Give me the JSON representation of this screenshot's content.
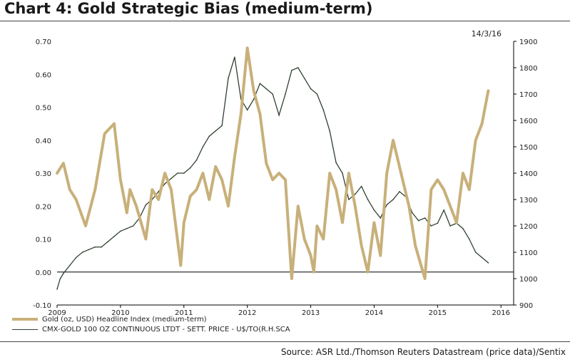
{
  "title": "Chart 4: Gold Strategic Bias (medium-term)",
  "date": "14/3/16",
  "source": "Source: ASR Ltd./Thomson Reuters Datastream (price data)/Sentix",
  "colors": {
    "index": "#c8b07a",
    "price": "#2f4030",
    "axis": "#000000"
  },
  "chart_data": {
    "type": "line",
    "title": "Chart 4: Gold Strategic Bias (medium-term)",
    "x_ticks": [
      "2009",
      "2010",
      "2011",
      "2012",
      "2013",
      "2014",
      "2015",
      "2016"
    ],
    "y_left": {
      "lim": [
        -0.1,
        0.7
      ],
      "ticks": [
        "-0.10",
        "0.00",
        "0.10",
        "0.20",
        "0.30",
        "0.40",
        "0.50",
        "0.60",
        "0.70"
      ]
    },
    "y_right": {
      "lim": [
        900,
        1900
      ],
      "ticks": [
        "900",
        "1000",
        "1100",
        "1200",
        "1300",
        "1400",
        "1500",
        "1600",
        "1700",
        "1800",
        "1900"
      ]
    },
    "grid": false,
    "legend": "bottom-left",
    "series": [
      {
        "name": "Gold (oz, USD) Headline Index (medium-term)",
        "axis": "left",
        "x": [
          2009.0,
          2009.1,
          2009.2,
          2009.3,
          2009.45,
          2009.6,
          2009.75,
          2009.9,
          2010.0,
          2010.1,
          2010.15,
          2010.25,
          2010.4,
          2010.5,
          2010.6,
          2010.7,
          2010.8,
          2010.95,
          2011.0,
          2011.1,
          2011.2,
          2011.3,
          2011.4,
          2011.5,
          2011.6,
          2011.7,
          2011.8,
          2011.9,
          2012.0,
          2012.1,
          2012.2,
          2012.3,
          2012.4,
          2012.5,
          2012.6,
          2012.7,
          2012.8,
          2012.9,
          2013.0,
          2013.05,
          2013.1,
          2013.2,
          2013.3,
          2013.4,
          2013.5,
          2013.6,
          2013.7,
          2013.8,
          2013.9,
          2014.0,
          2014.1,
          2014.2,
          2014.3,
          2014.45,
          2014.55,
          2014.65,
          2014.8,
          2014.9,
          2015.0,
          2015.1,
          2015.2,
          2015.3,
          2015.4,
          2015.5,
          2015.6,
          2015.7,
          2015.8
        ],
        "values": [
          0.3,
          0.33,
          0.25,
          0.22,
          0.14,
          0.25,
          0.42,
          0.45,
          0.28,
          0.18,
          0.25,
          0.2,
          0.1,
          0.25,
          0.22,
          0.3,
          0.25,
          0.02,
          0.15,
          0.23,
          0.25,
          0.3,
          0.22,
          0.32,
          0.28,
          0.2,
          0.35,
          0.48,
          0.68,
          0.55,
          0.48,
          0.33,
          0.28,
          0.3,
          0.28,
          -0.02,
          0.2,
          0.1,
          0.05,
          0.0,
          0.14,
          0.1,
          0.3,
          0.25,
          0.15,
          0.3,
          0.2,
          0.08,
          0.0,
          0.15,
          0.05,
          0.3,
          0.4,
          0.28,
          0.2,
          0.08,
          -0.02,
          0.25,
          0.28,
          0.25,
          0.2,
          0.15,
          0.3,
          0.25,
          0.4,
          0.45,
          0.55
        ]
      },
      {
        "name": "CMX-GOLD 100 OZ CONTINUOUS LTDT - SETT. PRICE - U$/TO(R.H.SCA",
        "axis": "right",
        "x": [
          2009.0,
          2009.05,
          2009.1,
          2009.2,
          2009.3,
          2009.4,
          2009.5,
          2009.6,
          2009.7,
          2009.8,
          2009.9,
          2010.0,
          2010.1,
          2010.2,
          2010.3,
          2010.4,
          2010.5,
          2010.6,
          2010.7,
          2010.8,
          2010.9,
          2011.0,
          2011.1,
          2011.2,
          2011.3,
          2011.4,
          2011.5,
          2011.6,
          2011.7,
          2011.8,
          2011.9,
          2012.0,
          2012.1,
          2012.2,
          2012.3,
          2012.4,
          2012.5,
          2012.6,
          2012.7,
          2012.8,
          2012.9,
          2013.0,
          2013.1,
          2013.2,
          2013.3,
          2013.4,
          2013.5,
          2013.6,
          2013.7,
          2013.8,
          2013.9,
          2014.0,
          2014.1,
          2014.2,
          2014.3,
          2014.4,
          2014.5,
          2014.6,
          2014.7,
          2014.8,
          2014.9,
          2015.0,
          2015.1,
          2015.2,
          2015.3,
          2015.4,
          2015.5,
          2015.6,
          2015.7,
          2015.8
        ],
        "values": [
          960,
          1000,
          1020,
          1050,
          1080,
          1100,
          1110,
          1120,
          1120,
          1140,
          1160,
          1180,
          1190,
          1200,
          1230,
          1280,
          1300,
          1330,
          1360,
          1380,
          1400,
          1400,
          1420,
          1450,
          1500,
          1540,
          1560,
          1580,
          1760,
          1840,
          1680,
          1640,
          1680,
          1740,
          1720,
          1700,
          1620,
          1700,
          1790,
          1800,
          1760,
          1720,
          1700,
          1640,
          1560,
          1440,
          1400,
          1300,
          1320,
          1350,
          1300,
          1260,
          1230,
          1280,
          1300,
          1330,
          1310,
          1250,
          1220,
          1230,
          1200,
          1210,
          1260,
          1200,
          1210,
          1190,
          1150,
          1100,
          1080,
          1060
        ]
      }
    ]
  }
}
